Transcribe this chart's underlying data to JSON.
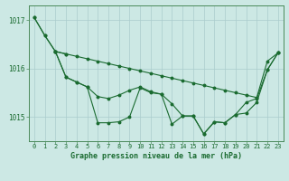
{
  "background_color": "#cce8e4",
  "grid_color": "#aacccc",
  "line_color": "#1a6b30",
  "spine_color": "#4a8a5a",
  "title": "Graphe pression niveau de la mer (hPa)",
  "xlim": [
    -0.5,
    23.5
  ],
  "ylim": [
    1014.5,
    1017.3
  ],
  "yticks": [
    1015,
    1016,
    1017
  ],
  "xticks": [
    0,
    1,
    2,
    3,
    4,
    5,
    6,
    7,
    8,
    9,
    10,
    11,
    12,
    13,
    14,
    15,
    16,
    17,
    18,
    19,
    20,
    21,
    22,
    23
  ],
  "series1_x": [
    0,
    1,
    2,
    3
  ],
  "series1_y": [
    1017.05,
    1016.68,
    1016.35,
    1016.3
  ],
  "series2_x": [
    0,
    1,
    2,
    3,
    4,
    5,
    6,
    7,
    8,
    9,
    10,
    11,
    12,
    13,
    14,
    15,
    16,
    17,
    18,
    19,
    20,
    21,
    22,
    23
  ],
  "series2_y": [
    1017.05,
    1016.68,
    1016.35,
    1015.82,
    1015.72,
    1015.62,
    1014.88,
    1014.88,
    1014.9,
    1015.0,
    1015.6,
    1015.5,
    1015.47,
    1014.85,
    1015.02,
    1015.02,
    1014.65,
    1014.9,
    1014.88,
    1015.05,
    1015.3,
    1015.38,
    1015.97,
    1016.32
  ],
  "series3_x": [
    2,
    3,
    4,
    5,
    6,
    7,
    8,
    9,
    10,
    11,
    12,
    13,
    14,
    15,
    16,
    17,
    18,
    19,
    20,
    21,
    22,
    23
  ],
  "series3_y": [
    1016.35,
    1016.3,
    1016.25,
    1016.2,
    1016.15,
    1016.1,
    1016.05,
    1016.0,
    1015.95,
    1015.9,
    1015.85,
    1015.8,
    1015.75,
    1015.7,
    1015.65,
    1015.6,
    1015.55,
    1015.5,
    1015.45,
    1015.4,
    1016.15,
    1016.32
  ],
  "series4_x": [
    2,
    3,
    4,
    5,
    6,
    7,
    8,
    9,
    10,
    11,
    12,
    13,
    14,
    15,
    16,
    17,
    18,
    19,
    20,
    21,
    22,
    23
  ],
  "series4_y": [
    1016.35,
    1015.82,
    1015.72,
    1015.62,
    1015.42,
    1015.38,
    1015.45,
    1015.55,
    1015.62,
    1015.52,
    1015.47,
    1015.27,
    1015.02,
    1015.02,
    1014.65,
    1014.9,
    1014.88,
    1015.05,
    1015.08,
    1015.3,
    1015.97,
    1016.32
  ]
}
